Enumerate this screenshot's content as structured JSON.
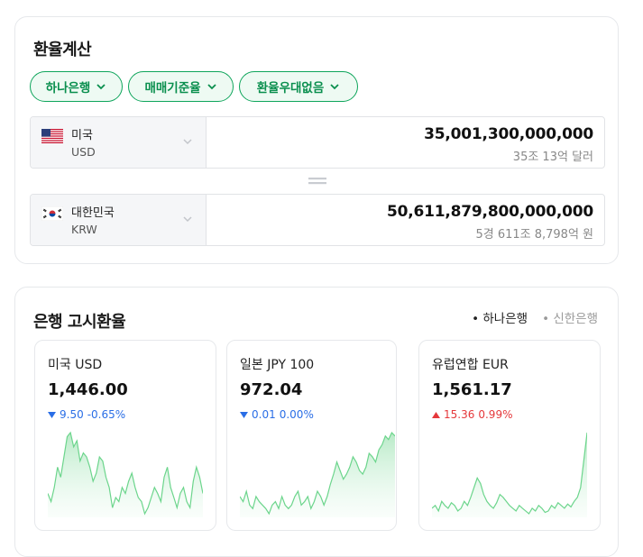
{
  "calculator": {
    "title": "환율계산",
    "chips": [
      "하나은행",
      "매매기준율",
      "환율우대없음"
    ],
    "from": {
      "name": "미국",
      "code": "USD",
      "amount": "35,001,300,000,000",
      "amount_korean": "35조 13억 달러"
    },
    "to": {
      "name": "대한민국",
      "code": "KRW",
      "amount": "50,611,879,800,000,000",
      "amount_korean": "5경 611조 8,798억 원"
    }
  },
  "bank_rates": {
    "title": "은행 고시환율",
    "tabs": [
      "• 하나은행",
      "• 신한은행"
    ],
    "active_tab": "• 하나은행",
    "cards": [
      {
        "name": "미국 USD",
        "value": "1,446.00",
        "change": "9.50",
        "change_pct": "-0.65%",
        "direction": "down",
        "trend": [
          42,
          38,
          45,
          55,
          50,
          60,
          70,
          72,
          65,
          68,
          58,
          62,
          60,
          55,
          48,
          52,
          60,
          58,
          50,
          45,
          35,
          40,
          38,
          45,
          42,
          48,
          52,
          45,
          40,
          38,
          32,
          35,
          40,
          45,
          42,
          38,
          50,
          55,
          45,
          40,
          35,
          42,
          45,
          38,
          35,
          48,
          55,
          50,
          42
        ]
      },
      {
        "name": "일본 JPY 100",
        "value": "972.04",
        "change": "0.01",
        "change_pct": "0.00%",
        "direction": "down",
        "trend": [
          35,
          32,
          38,
          30,
          28,
          35,
          32,
          30,
          28,
          25,
          30,
          32,
          28,
          35,
          30,
          28,
          30,
          35,
          38,
          30,
          32,
          35,
          28,
          32,
          38,
          35,
          30,
          35,
          42,
          48,
          55,
          50,
          45,
          48,
          52,
          58,
          55,
          50,
          48,
          52,
          60,
          58,
          55,
          62,
          65,
          70,
          68,
          72,
          70
        ]
      },
      {
        "name": "유럽연합 EUR",
        "value": "1,561.17",
        "change": "15.36",
        "change_pct": "0.99%",
        "direction": "up",
        "trend": [
          20,
          22,
          18,
          25,
          22,
          20,
          24,
          22,
          18,
          20,
          25,
          22,
          28,
          35,
          42,
          38,
          30,
          25,
          22,
          20,
          24,
          30,
          28,
          25,
          22,
          20,
          18,
          22,
          20,
          18,
          16,
          20,
          18,
          22,
          20,
          17,
          18,
          22,
          20,
          24,
          22,
          20,
          23,
          21,
          25,
          28,
          35,
          55,
          75
        ]
      }
    ]
  },
  "colors": {
    "accent_green": "#0ea55b",
    "down_blue": "#2a6ee6",
    "up_red": "#e5383b"
  }
}
